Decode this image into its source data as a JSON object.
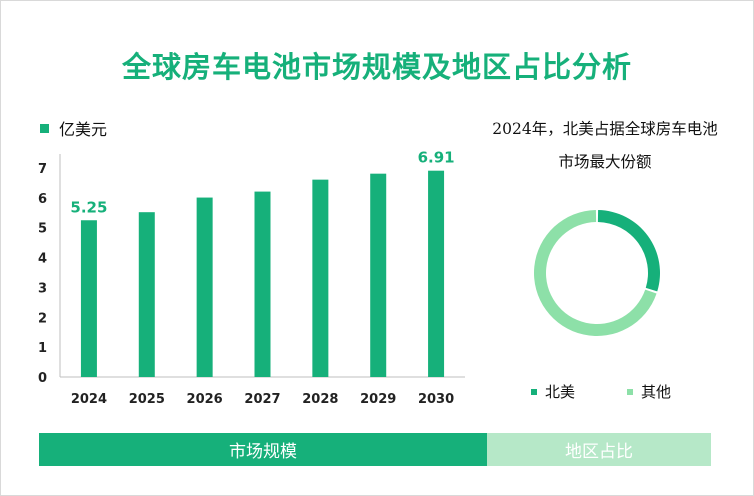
{
  "title": "全球房车电池市场规模及地区占比分析",
  "colors": {
    "primary": "#16b07a",
    "secondary": "#8de0a8",
    "tab_inactive": "#b6e8c8"
  },
  "chart_data": [
    {
      "type": "bar",
      "legend": "亿美元",
      "categories": [
        "2024",
        "2025",
        "2026",
        "2027",
        "2028",
        "2029",
        "2030"
      ],
      "values": [
        5.25,
        5.52,
        6.01,
        6.21,
        6.61,
        6.81,
        6.91
      ],
      "data_labels": {
        "2024": "5.25",
        "2030": "6.91"
      },
      "y_ticks": [
        "0",
        "1",
        "2",
        "3",
        "4",
        "5",
        "6",
        "7"
      ],
      "ylim": [
        0,
        7
      ],
      "grid": false
    },
    {
      "type": "pie",
      "title_lines": [
        "2024年，北美占据全球房车电池",
        "市场最大份额"
      ],
      "slices": [
        {
          "name": "北美",
          "value": 0.3
        },
        {
          "name": "其他",
          "value": 0.7
        }
      ]
    }
  ],
  "tabs": [
    "市场规模",
    "地区占比"
  ]
}
